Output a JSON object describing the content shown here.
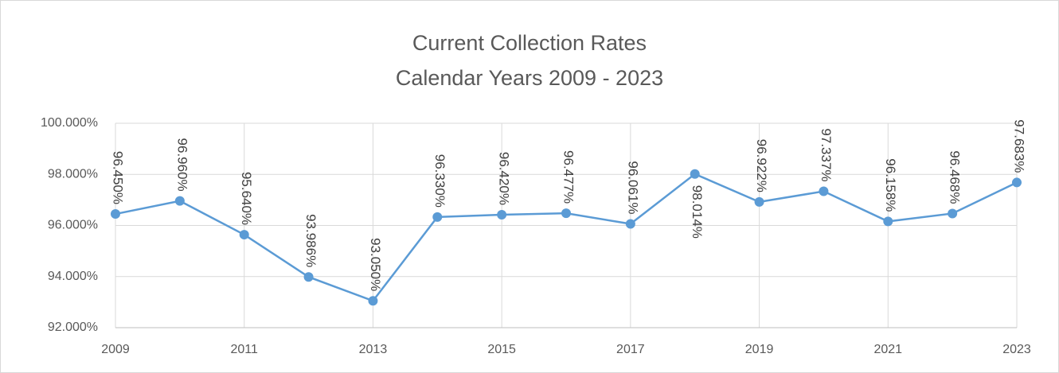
{
  "chart_data": {
    "type": "line",
    "title": "Current Collection Rates",
    "subtitle": "Calendar Years 2009 - 2023",
    "x": [
      2009,
      2010,
      2011,
      2012,
      2013,
      2014,
      2015,
      2016,
      2017,
      2018,
      2019,
      2020,
      2021,
      2022,
      2023
    ],
    "series": [
      {
        "name": "Current Collection Rate",
        "color": "#5b9bd5",
        "values": [
          96.45,
          96.96,
          95.64,
          93.986,
          93.05,
          96.33,
          96.42,
          96.477,
          96.061,
          98.014,
          96.922,
          97.337,
          96.158,
          96.468,
          97.683
        ],
        "value_labels": [
          "96.450%",
          "96.960%",
          "95.640%",
          "93.986%",
          "93.050%",
          "96.330%",
          "96.420%",
          "96.477%",
          "96.061%",
          "98.014%",
          "96.922%",
          "97.337%",
          "96.158%",
          "96.468%",
          "97.683%"
        ]
      }
    ],
    "xlim": [
      2009,
      2023
    ],
    "xticks": [
      2009,
      2011,
      2013,
      2015,
      2017,
      2019,
      2021,
      2023
    ],
    "ylim": [
      92,
      100
    ],
    "yticks": [
      {
        "value": 92,
        "label": "92.000%"
      },
      {
        "value": 94,
        "label": "94.000%"
      },
      {
        "value": 96,
        "label": "96.000%"
      },
      {
        "value": 98,
        "label": "98.000%"
      },
      {
        "value": 100,
        "label": "100.000%"
      }
    ],
    "grid": true
  }
}
